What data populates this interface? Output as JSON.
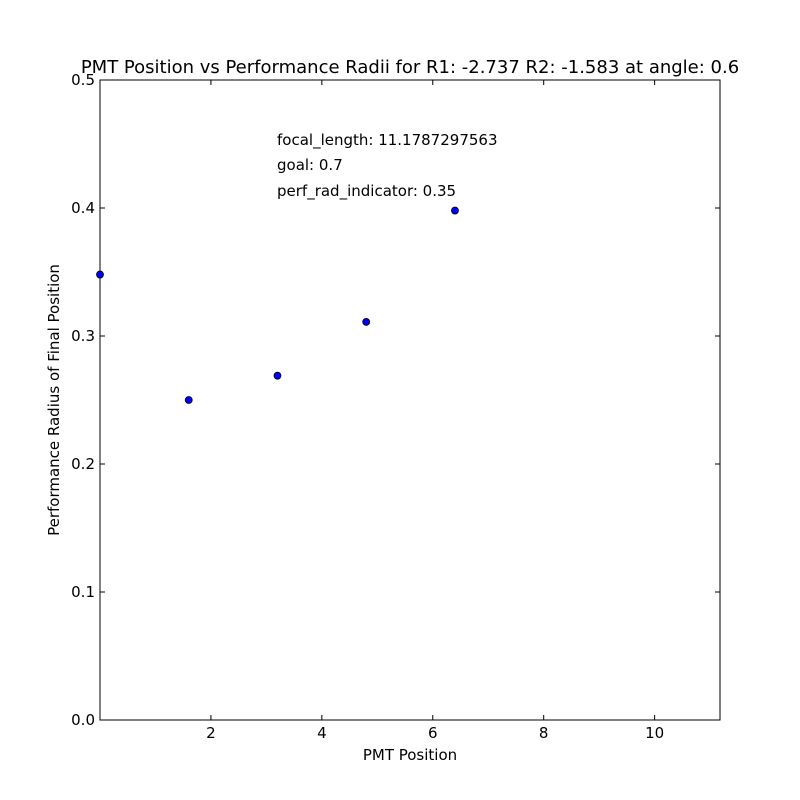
{
  "chart_data": {
    "type": "scatter",
    "title": "PMT Position vs Performance Radii for R1: -2.737 R2: -1.583 at angle: 0.6",
    "xlabel": "PMT Position",
    "ylabel": "Performance Radius of Final Position",
    "xlim": [
      0,
      11.1787297563
    ],
    "ylim": [
      0.0,
      0.5
    ],
    "x_ticks": [
      2,
      4,
      6,
      8,
      10
    ],
    "x_tick_labels": [
      "2",
      "4",
      "6",
      "8",
      "10"
    ],
    "y_ticks": [
      0.0,
      0.1,
      0.2,
      0.3,
      0.4,
      0.5
    ],
    "y_tick_labels": [
      "0.0",
      "0.1",
      "0.2",
      "0.3",
      "0.4",
      "0.5"
    ],
    "grid": false,
    "series": [
      {
        "color": "#0000ff",
        "points": [
          {
            "x": 0.0,
            "y": 0.348
          },
          {
            "x": 1.6,
            "y": 0.25
          },
          {
            "x": 3.2,
            "y": 0.269
          },
          {
            "x": 4.8,
            "y": 0.311
          },
          {
            "x": 6.4,
            "y": 0.398
          }
        ]
      }
    ],
    "annotations": [
      "focal_length: 11.1787297563",
      "goal: 0.7",
      "perf_rad_indicator: 0.35"
    ]
  }
}
